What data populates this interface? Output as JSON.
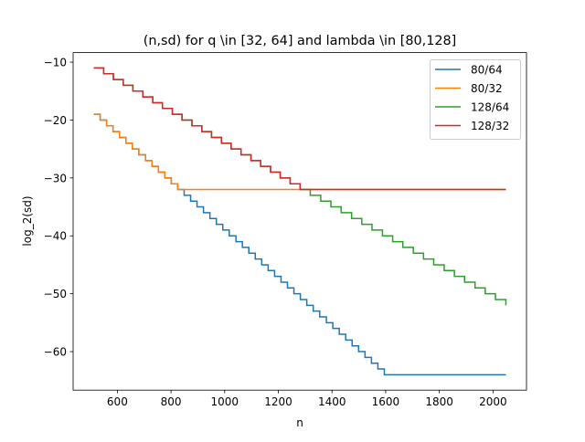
{
  "chart_data": {
    "type": "line",
    "title": "(n,sd) for q \\in [32, 64] and lambda \\in [80,128]",
    "xlabel": "n",
    "ylabel": "log_2(sd)",
    "xlim": [
      435.2,
      2124.8
    ],
    "ylim": [
      -66.65,
      -8.35
    ],
    "xticks": [
      600,
      800,
      1000,
      1200,
      1400,
      1600,
      1800,
      2000
    ],
    "yticks": [
      -10,
      -20,
      -30,
      -40,
      -50,
      -60
    ],
    "grid": false,
    "legend_position": "top-right",
    "step": "post",
    "series": [
      {
        "name": "80/64",
        "color": "#1f77b4",
        "points": [
          [
            512,
            -19
          ],
          [
            536,
            -20
          ],
          [
            560,
            -21
          ],
          [
            584,
            -22
          ],
          [
            608,
            -23
          ],
          [
            632,
            -24
          ],
          [
            656,
            -25
          ],
          [
            680,
            -26
          ],
          [
            705,
            -27
          ],
          [
            729,
            -28
          ],
          [
            753,
            -29
          ],
          [
            777,
            -30
          ],
          [
            801,
            -31
          ],
          [
            825,
            -32
          ],
          [
            849,
            -33
          ],
          [
            873,
            -34
          ],
          [
            897,
            -35
          ],
          [
            921,
            -36
          ],
          [
            945,
            -37
          ],
          [
            969,
            -38
          ],
          [
            993,
            -39
          ],
          [
            1017,
            -40
          ],
          [
            1042,
            -41
          ],
          [
            1066,
            -42
          ],
          [
            1090,
            -43
          ],
          [
            1114,
            -44
          ],
          [
            1138,
            -45
          ],
          [
            1162,
            -46
          ],
          [
            1186,
            -47
          ],
          [
            1210,
            -48
          ],
          [
            1234,
            -49
          ],
          [
            1258,
            -50
          ],
          [
            1282,
            -51
          ],
          [
            1306,
            -52
          ],
          [
            1330,
            -53
          ],
          [
            1354,
            -54
          ],
          [
            1379,
            -55
          ],
          [
            1403,
            -56
          ],
          [
            1427,
            -57
          ],
          [
            1451,
            -58
          ],
          [
            1475,
            -59
          ],
          [
            1499,
            -60
          ],
          [
            1523,
            -61
          ],
          [
            1547,
            -62
          ],
          [
            1571,
            -63
          ],
          [
            1595,
            -64
          ],
          [
            2048,
            -64
          ]
        ]
      },
      {
        "name": "80/32",
        "color": "#ff7f0e",
        "points": [
          [
            512,
            -19
          ],
          [
            536,
            -20
          ],
          [
            560,
            -21
          ],
          [
            584,
            -22
          ],
          [
            608,
            -23
          ],
          [
            632,
            -24
          ],
          [
            656,
            -25
          ],
          [
            680,
            -26
          ],
          [
            705,
            -27
          ],
          [
            729,
            -28
          ],
          [
            753,
            -29
          ],
          [
            777,
            -30
          ],
          [
            801,
            -31
          ],
          [
            825,
            -32
          ],
          [
            2048,
            -32
          ]
        ]
      },
      {
        "name": "128/64",
        "color": "#2ca02c",
        "points": [
          [
            512,
            -11
          ],
          [
            549,
            -12
          ],
          [
            585,
            -13
          ],
          [
            622,
            -14
          ],
          [
            658,
            -15
          ],
          [
            695,
            -16
          ],
          [
            732,
            -17
          ],
          [
            768,
            -18
          ],
          [
            805,
            -19
          ],
          [
            841,
            -20
          ],
          [
            878,
            -21
          ],
          [
            915,
            -22
          ],
          [
            951,
            -23
          ],
          [
            988,
            -24
          ],
          [
            1024,
            -25
          ],
          [
            1061,
            -26
          ],
          [
            1098,
            -27
          ],
          [
            1134,
            -28
          ],
          [
            1171,
            -29
          ],
          [
            1207,
            -30
          ],
          [
            1244,
            -31
          ],
          [
            1281,
            -32
          ],
          [
            1319,
            -33
          ],
          [
            1358,
            -34
          ],
          [
            1396,
            -35
          ],
          [
            1434,
            -36
          ],
          [
            1473,
            -37
          ],
          [
            1511,
            -38
          ],
          [
            1549,
            -39
          ],
          [
            1588,
            -40
          ],
          [
            1626,
            -41
          ],
          [
            1664,
            -42
          ],
          [
            1703,
            -43
          ],
          [
            1741,
            -44
          ],
          [
            1779,
            -45
          ],
          [
            1818,
            -46
          ],
          [
            1856,
            -47
          ],
          [
            1894,
            -48
          ],
          [
            1933,
            -49
          ],
          [
            1971,
            -50
          ],
          [
            2009,
            -51
          ],
          [
            2048,
            -52
          ]
        ]
      },
      {
        "name": "128/32",
        "color": "#d62728",
        "points": [
          [
            512,
            -11
          ],
          [
            549,
            -12
          ],
          [
            585,
            -13
          ],
          [
            622,
            -14
          ],
          [
            658,
            -15
          ],
          [
            695,
            -16
          ],
          [
            732,
            -17
          ],
          [
            768,
            -18
          ],
          [
            805,
            -19
          ],
          [
            841,
            -20
          ],
          [
            878,
            -21
          ],
          [
            915,
            -22
          ],
          [
            951,
            -23
          ],
          [
            988,
            -24
          ],
          [
            1024,
            -25
          ],
          [
            1061,
            -26
          ],
          [
            1098,
            -27
          ],
          [
            1134,
            -28
          ],
          [
            1171,
            -29
          ],
          [
            1207,
            -30
          ],
          [
            1244,
            -31
          ],
          [
            1281,
            -32
          ],
          [
            2048,
            -32
          ]
        ]
      }
    ]
  }
}
